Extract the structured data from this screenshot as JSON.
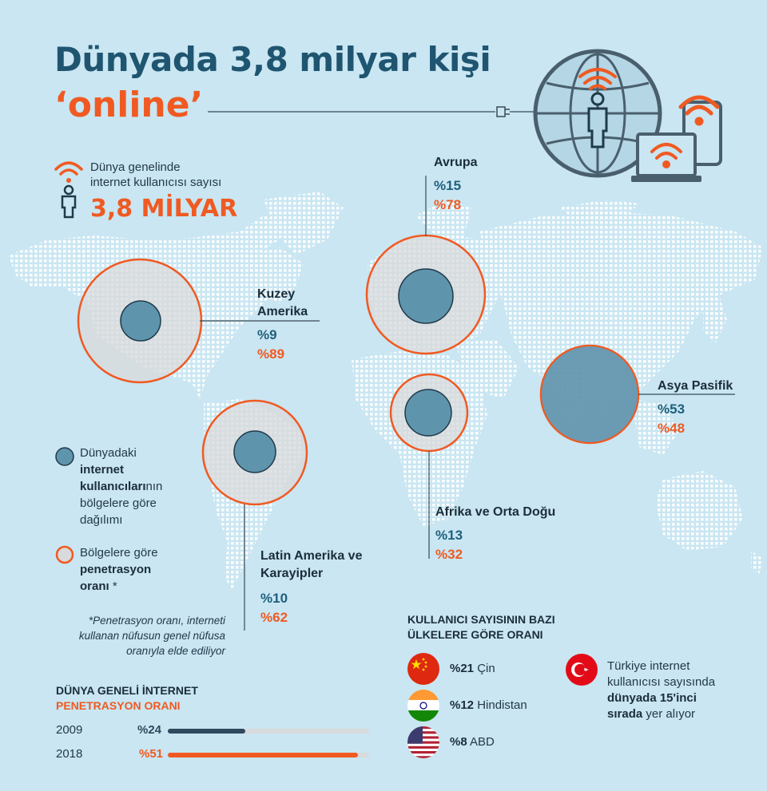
{
  "title_line1": "Dünyada 3,8 milyar kişi",
  "title_line2": "‘online’",
  "total": {
    "label_line1": "Dünya genelinde",
    "label_line2": "internet kullanıcısı sayısı",
    "value": "3,8 MİLYAR"
  },
  "regions": [
    {
      "name_line1": "Kuzey",
      "name_line2": "Amerika",
      "share": "%9",
      "penetration": "%89"
    },
    {
      "name_line1": "Avrupa",
      "name_line2": "",
      "share": "%15",
      "penetration": "%78"
    },
    {
      "name_line1": "Asya Pasifik",
      "name_line2": "",
      "share": "%53",
      "penetration": "%48"
    },
    {
      "name_line1": "Afrika ve Orta Doğu",
      "name_line2": "",
      "share": "%13",
      "penetration": "%32"
    },
    {
      "name_line1": "Latin Amerika ve",
      "name_line2": "Karayipler",
      "share": "%10",
      "penetration": "%62"
    }
  ],
  "legend": {
    "users_pre": "Dünyadaki",
    "users_bold1": "internet",
    "users_bold2": "kullanıcıları",
    "users_suffix": "nın",
    "users_line3": "bölgelere göre",
    "users_line4": "dağılımı",
    "pen_line1": "Bölgelere göre",
    "pen_bold1": "penetrasyon",
    "pen_bold2": "oranı",
    "pen_suffix": " *"
  },
  "note": {
    "line1": "*Penetrasyon oranı, interneti",
    "line2": "kullanan nüfusun genel nüfusa",
    "line3": "oranıyla elde ediliyor"
  },
  "global_penetration": {
    "title_line1": "DÜNYA GENELİ İNTERNET",
    "title_line2": "PENETRASYON ORANI",
    "rows": [
      {
        "year": "2009",
        "value_label": "%24",
        "value": 24,
        "color": "#2f4a5e"
      },
      {
        "year": "2018",
        "value_label": "%51",
        "value": 51,
        "color": "#f05a22"
      }
    ]
  },
  "countries": {
    "title_line1": "KULLANICI SAYISININ BAZI",
    "title_line2": "ÜLKELERE GÖRE ORANI",
    "items": [
      {
        "pct": "%21",
        "name": "Çin",
        "flag": "china-flag-icon"
      },
      {
        "pct": "%12",
        "name": "Hindistan",
        "flag": "india-flag-icon"
      },
      {
        "pct": "%8",
        "name": "ABD",
        "flag": "usa-flag-icon"
      }
    ]
  },
  "turkey": {
    "line1": "Türkiye internet",
    "line2": "kullanıcısı sayısında",
    "line3_bold": "dünyada 15'inci",
    "line4_bold": "sırada",
    "line4_rest": " yer alıyor"
  },
  "colors": {
    "background": "#c9e6f2",
    "accent": "#f05a22",
    "blue": "#1f5570",
    "circle_fill": "#5f94ad"
  }
}
